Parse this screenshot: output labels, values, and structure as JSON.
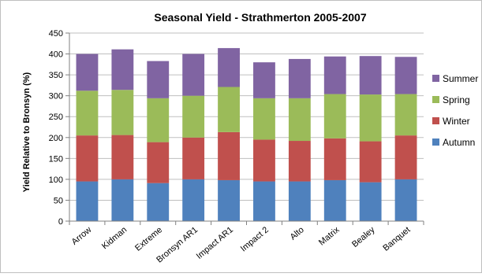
{
  "chart_data": {
    "type": "bar",
    "stacked": true,
    "title": "Seasonal Yield - Strathmerton 2005-2007",
    "xlabel": "",
    "ylabel": "Yield Relative to Bronsyn (%)",
    "ylim": [
      0,
      450
    ],
    "yticks": [
      0,
      50,
      100,
      150,
      200,
      250,
      300,
      350,
      400,
      450
    ],
    "grid": true,
    "legend": "right",
    "categories": [
      "Arrow",
      "Kidman",
      "Extreme",
      "Bronsyn AR1",
      "Impact AR1",
      "Impact 2",
      "Alto",
      "Matrix",
      "Bealey",
      "Banquet"
    ],
    "series": [
      {
        "name": "Autumn",
        "color": "#4f81bd",
        "values": [
          95,
          100,
          91,
          100,
          98,
          95,
          95,
          98,
          93,
          100
        ]
      },
      {
        "name": "Winter",
        "color": "#c0504d",
        "values": [
          110,
          106,
          98,
          100,
          115,
          100,
          97,
          100,
          98,
          105
        ]
      },
      {
        "name": "Spring",
        "color": "#9bbb59",
        "values": [
          107,
          108,
          105,
          100,
          108,
          99,
          102,
          106,
          112,
          99
        ]
      },
      {
        "name": "Summer",
        "color": "#8064a2",
        "values": [
          88,
          97,
          89,
          100,
          93,
          86,
          94,
          90,
          92,
          89
        ]
      }
    ]
  }
}
